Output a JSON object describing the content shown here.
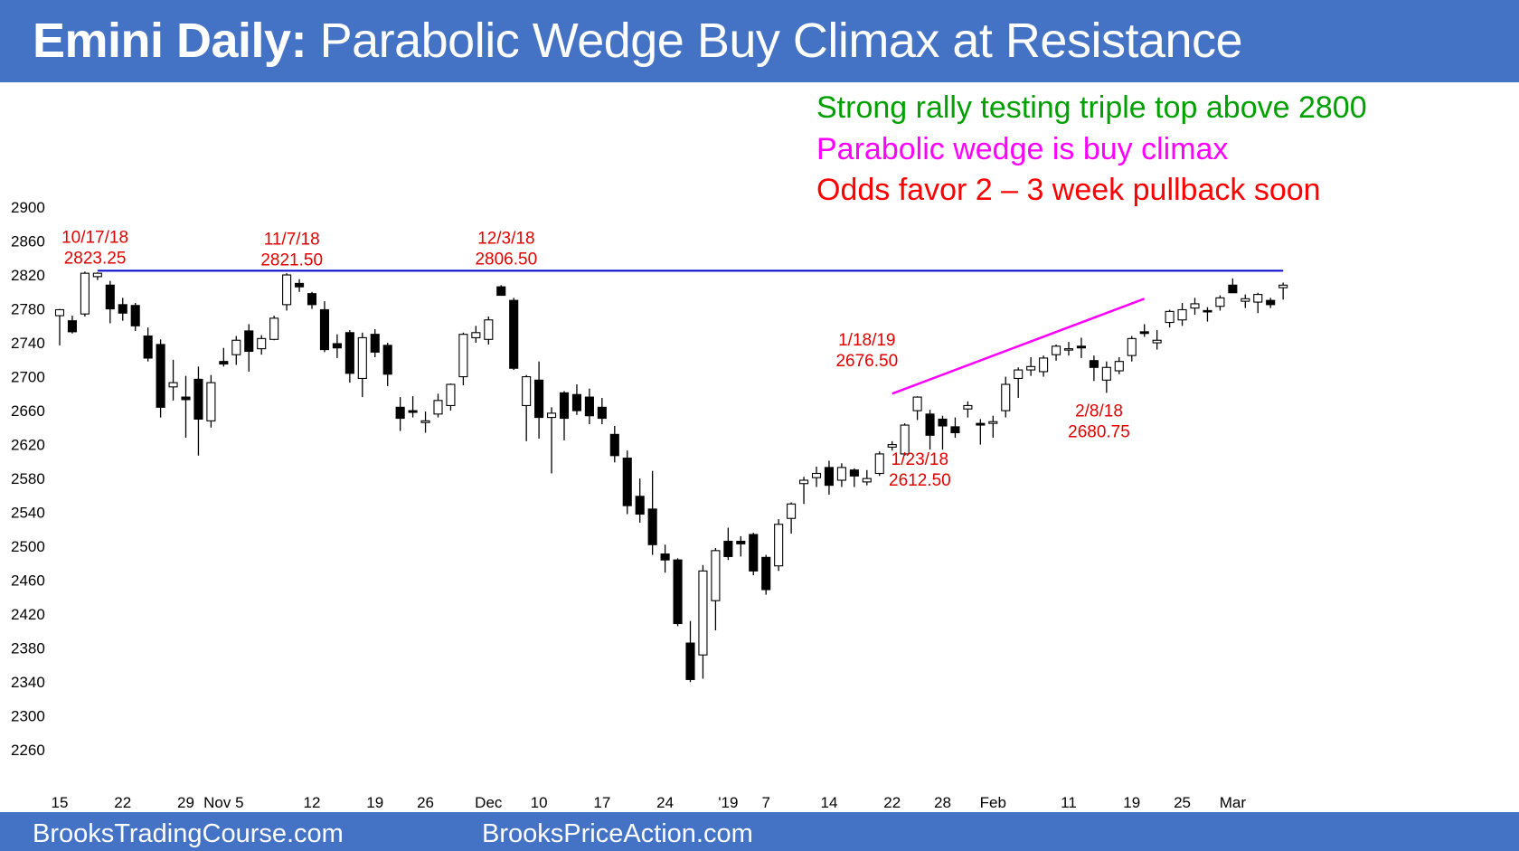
{
  "header": {
    "title_bold": "Emini Daily:",
    "title_rest": " Parabolic Wedge Buy Climax at Resistance"
  },
  "notes": [
    {
      "text": "Strong rally testing triple top above 2800",
      "color": "#00a000"
    },
    {
      "text": "Parabolic wedge is buy climax",
      "color": "#ff00ff"
    },
    {
      "text": "Odds favor 2 – 3 week pullback soon",
      "color": "#ff0000"
    }
  ],
  "footer": {
    "left": "BrooksTradingCourse.com",
    "right": "BrooksPriceAction.com"
  },
  "colors": {
    "banner": "#4472c4",
    "resistance_line": "#0000cc",
    "wedge_line": "#ff00ff",
    "annotation": "#e00000"
  },
  "chart_data": {
    "type": "candlestick",
    "title": "Emini Daily: Parabolic Wedge Buy Climax at Resistance",
    "ylim": [
      2240,
      2900
    ],
    "y_ticks": [
      2900,
      2860,
      2820,
      2780,
      2740,
      2700,
      2660,
      2620,
      2580,
      2540,
      2500,
      2460,
      2420,
      2380,
      2340,
      2300,
      2260
    ],
    "grid": false,
    "x_ticks": [
      {
        "i": 0,
        "label": "15"
      },
      {
        "i": 5,
        "label": "22"
      },
      {
        "i": 10,
        "label": "29"
      },
      {
        "i": 13,
        "label": "Nov 5"
      },
      {
        "i": 20,
        "label": "12"
      },
      {
        "i": 25,
        "label": "19"
      },
      {
        "i": 29,
        "label": "26"
      },
      {
        "i": 34,
        "label": "Dec"
      },
      {
        "i": 38,
        "label": "10"
      },
      {
        "i": 43,
        "label": "17"
      },
      {
        "i": 48,
        "label": "24"
      },
      {
        "i": 53,
        "label": "'19"
      },
      {
        "i": 56,
        "label": "7"
      },
      {
        "i": 61,
        "label": "14"
      },
      {
        "i": 66,
        "label": "22"
      },
      {
        "i": 70,
        "label": "28"
      },
      {
        "i": 74,
        "label": "Feb"
      },
      {
        "i": 80,
        "label": "11"
      },
      {
        "i": 85,
        "label": "19"
      },
      {
        "i": 89,
        "label": "25"
      },
      {
        "i": 93,
        "label": "Mar"
      }
    ],
    "candles": [
      {
        "o": 2772,
        "h": 2780,
        "l": 2737,
        "c": 2779
      },
      {
        "o": 2766,
        "h": 2772,
        "l": 2751,
        "c": 2753
      },
      {
        "o": 2774,
        "h": 2824,
        "l": 2771,
        "c": 2822
      },
      {
        "o": 2818,
        "h": 2823,
        "l": 2814,
        "c": 2822
      },
      {
        "o": 2808,
        "h": 2813,
        "l": 2763,
        "c": 2780
      },
      {
        "o": 2785,
        "h": 2793,
        "l": 2766,
        "c": 2775
      },
      {
        "o": 2784,
        "h": 2787,
        "l": 2754,
        "c": 2760
      },
      {
        "o": 2748,
        "h": 2758,
        "l": 2718,
        "c": 2722
      },
      {
        "o": 2738,
        "h": 2744,
        "l": 2652,
        "c": 2664
      },
      {
        "o": 2688,
        "h": 2720,
        "l": 2672,
        "c": 2693
      },
      {
        "o": 2676,
        "h": 2701,
        "l": 2628,
        "c": 2673
      },
      {
        "o": 2697,
        "h": 2712,
        "l": 2607,
        "c": 2650
      },
      {
        "o": 2648,
        "h": 2702,
        "l": 2640,
        "c": 2693
      },
      {
        "o": 2718,
        "h": 2734,
        "l": 2712,
        "c": 2715
      },
      {
        "o": 2726,
        "h": 2748,
        "l": 2714,
        "c": 2743
      },
      {
        "o": 2754,
        "h": 2762,
        "l": 2706,
        "c": 2730
      },
      {
        "o": 2733,
        "h": 2749,
        "l": 2726,
        "c": 2745
      },
      {
        "o": 2744,
        "h": 2772,
        "l": 2743,
        "c": 2769
      },
      {
        "o": 2785,
        "h": 2822,
        "l": 2778,
        "c": 2820
      },
      {
        "o": 2810,
        "h": 2815,
        "l": 2800,
        "c": 2806
      },
      {
        "o": 2798,
        "h": 2800,
        "l": 2780,
        "c": 2785
      },
      {
        "o": 2779,
        "h": 2789,
        "l": 2729,
        "c": 2732
      },
      {
        "o": 2739,
        "h": 2750,
        "l": 2722,
        "c": 2734
      },
      {
        "o": 2752,
        "h": 2755,
        "l": 2693,
        "c": 2704
      },
      {
        "o": 2698,
        "h": 2752,
        "l": 2676,
        "c": 2746
      },
      {
        "o": 2750,
        "h": 2756,
        "l": 2723,
        "c": 2729
      },
      {
        "o": 2737,
        "h": 2740,
        "l": 2689,
        "c": 2703
      },
      {
        "o": 2664,
        "h": 2676,
        "l": 2636,
        "c": 2651
      },
      {
        "o": 2660,
        "h": 2677,
        "l": 2652,
        "c": 2658
      },
      {
        "o": 2646,
        "h": 2659,
        "l": 2634,
        "c": 2648
      },
      {
        "o": 2656,
        "h": 2680,
        "l": 2652,
        "c": 2672
      },
      {
        "o": 2666,
        "h": 2692,
        "l": 2660,
        "c": 2691
      },
      {
        "o": 2700,
        "h": 2752,
        "l": 2690,
        "c": 2750
      },
      {
        "o": 2746,
        "h": 2760,
        "l": 2740,
        "c": 2752
      },
      {
        "o": 2744,
        "h": 2771,
        "l": 2738,
        "c": 2767
      },
      {
        "o": 2806,
        "h": 2808,
        "l": 2798,
        "c": 2796
      },
      {
        "o": 2790,
        "h": 2793,
        "l": 2708,
        "c": 2710
      },
      {
        "o": 2666,
        "h": 2702,
        "l": 2624,
        "c": 2700
      },
      {
        "o": 2696,
        "h": 2718,
        "l": 2627,
        "c": 2652
      },
      {
        "o": 2652,
        "h": 2664,
        "l": 2586,
        "c": 2657
      },
      {
        "o": 2681,
        "h": 2683,
        "l": 2625,
        "c": 2651
      },
      {
        "o": 2679,
        "h": 2691,
        "l": 2655,
        "c": 2660
      },
      {
        "o": 2676,
        "h": 2686,
        "l": 2644,
        "c": 2654
      },
      {
        "o": 2664,
        "h": 2675,
        "l": 2644,
        "c": 2651
      },
      {
        "o": 2632,
        "h": 2642,
        "l": 2599,
        "c": 2607
      },
      {
        "o": 2604,
        "h": 2613,
        "l": 2538,
        "c": 2548
      },
      {
        "o": 2559,
        "h": 2580,
        "l": 2528,
        "c": 2538
      },
      {
        "o": 2544,
        "h": 2589,
        "l": 2490,
        "c": 2502
      },
      {
        "o": 2491,
        "h": 2502,
        "l": 2469,
        "c": 2484
      },
      {
        "o": 2484,
        "h": 2486,
        "l": 2406,
        "c": 2409
      },
      {
        "o": 2386,
        "h": 2412,
        "l": 2340,
        "c": 2343
      },
      {
        "o": 2372,
        "h": 2478,
        "l": 2344,
        "c": 2471
      },
      {
        "o": 2436,
        "h": 2498,
        "l": 2401,
        "c": 2495
      },
      {
        "o": 2506,
        "h": 2522,
        "l": 2484,
        "c": 2488
      },
      {
        "o": 2506,
        "h": 2512,
        "l": 2488,
        "c": 2503
      },
      {
        "o": 2514,
        "h": 2516,
        "l": 2466,
        "c": 2471
      },
      {
        "o": 2487,
        "h": 2490,
        "l": 2443,
        "c": 2449
      },
      {
        "o": 2477,
        "h": 2532,
        "l": 2471,
        "c": 2526
      },
      {
        "o": 2533,
        "h": 2552,
        "l": 2515,
        "c": 2550
      },
      {
        "o": 2574,
        "h": 2582,
        "l": 2550,
        "c": 2578
      },
      {
        "o": 2581,
        "h": 2594,
        "l": 2570,
        "c": 2586
      },
      {
        "o": 2593,
        "h": 2601,
        "l": 2561,
        "c": 2572
      },
      {
        "o": 2578,
        "h": 2598,
        "l": 2570,
        "c": 2593
      },
      {
        "o": 2590,
        "h": 2592,
        "l": 2570,
        "c": 2583
      },
      {
        "o": 2576,
        "h": 2590,
        "l": 2572,
        "c": 2580
      },
      {
        "o": 2586,
        "h": 2612,
        "l": 2583,
        "c": 2609
      },
      {
        "o": 2617,
        "h": 2624,
        "l": 2613,
        "c": 2620
      },
      {
        "o": 2609,
        "h": 2645,
        "l": 2607,
        "c": 2643
      },
      {
        "o": 2660,
        "h": 2677,
        "l": 2649,
        "c": 2676
      },
      {
        "o": 2656,
        "h": 2661,
        "l": 2614,
        "c": 2631
      },
      {
        "o": 2650,
        "h": 2654,
        "l": 2614,
        "c": 2642
      },
      {
        "o": 2641,
        "h": 2652,
        "l": 2628,
        "c": 2634
      },
      {
        "o": 2662,
        "h": 2671,
        "l": 2652,
        "c": 2666
      },
      {
        "o": 2645,
        "h": 2650,
        "l": 2620,
        "c": 2643
      },
      {
        "o": 2645,
        "h": 2654,
        "l": 2628,
        "c": 2647
      },
      {
        "o": 2660,
        "h": 2700,
        "l": 2652,
        "c": 2691
      },
      {
        "o": 2698,
        "h": 2711,
        "l": 2675,
        "c": 2708
      },
      {
        "o": 2708,
        "h": 2723,
        "l": 2701,
        "c": 2712
      },
      {
        "o": 2706,
        "h": 2725,
        "l": 2700,
        "c": 2722
      },
      {
        "o": 2726,
        "h": 2738,
        "l": 2719,
        "c": 2736
      },
      {
        "o": 2733,
        "h": 2741,
        "l": 2725,
        "c": 2733
      },
      {
        "o": 2736,
        "h": 2746,
        "l": 2722,
        "c": 2734
      },
      {
        "o": 2719,
        "h": 2725,
        "l": 2695,
        "c": 2711
      },
      {
        "o": 2696,
        "h": 2718,
        "l": 2681,
        "c": 2711
      },
      {
        "o": 2707,
        "h": 2723,
        "l": 2703,
        "c": 2718
      },
      {
        "o": 2725,
        "h": 2748,
        "l": 2718,
        "c": 2745
      },
      {
        "o": 2753,
        "h": 2762,
        "l": 2747,
        "c": 2751
      },
      {
        "o": 2740,
        "h": 2755,
        "l": 2732,
        "c": 2743
      },
      {
        "o": 2764,
        "h": 2779,
        "l": 2758,
        "c": 2777
      },
      {
        "o": 2767,
        "h": 2787,
        "l": 2760,
        "c": 2779
      },
      {
        "o": 2781,
        "h": 2793,
        "l": 2773,
        "c": 2786
      },
      {
        "o": 2778,
        "h": 2782,
        "l": 2765,
        "c": 2777
      },
      {
        "o": 2783,
        "h": 2796,
        "l": 2778,
        "c": 2793
      },
      {
        "o": 2808,
        "h": 2816,
        "l": 2799,
        "c": 2799
      },
      {
        "o": 2789,
        "h": 2797,
        "l": 2781,
        "c": 2792
      },
      {
        "o": 2788,
        "h": 2799,
        "l": 2775,
        "c": 2797
      },
      {
        "o": 2790,
        "h": 2793,
        "l": 2781,
        "c": 2785
      },
      {
        "o": 2805,
        "h": 2811,
        "l": 2791,
        "c": 2808
      }
    ],
    "resistance_line": {
      "y": 2825,
      "x_start_index": 3,
      "x_end_index": 97
    },
    "wedge_line": {
      "start": {
        "i": 66,
        "y": 2680
      },
      "end": {
        "i": 86,
        "y": 2792
      }
    },
    "annotations": [
      {
        "lines": [
          "10/17/18",
          "2823.25"
        ],
        "i": 2.8,
        "y": 2858,
        "anchor": "middle"
      },
      {
        "lines": [
          "11/7/18",
          "2821.50"
        ],
        "i": 18.4,
        "y": 2856,
        "anchor": "middle"
      },
      {
        "lines": [
          "12/3/18",
          "2806.50"
        ],
        "i": 35.4,
        "y": 2857,
        "anchor": "middle"
      },
      {
        "lines": [
          "1/18/19",
          "2676.50"
        ],
        "i": 64.0,
        "y": 2737,
        "anchor": "middle"
      },
      {
        "lines": [
          "1/23/18",
          "2612.50"
        ],
        "i": 68.2,
        "y": 2596,
        "anchor": "middle"
      },
      {
        "lines": [
          "2/8/18",
          "2680.75"
        ],
        "i": 82.4,
        "y": 2653,
        "anchor": "middle"
      }
    ]
  }
}
